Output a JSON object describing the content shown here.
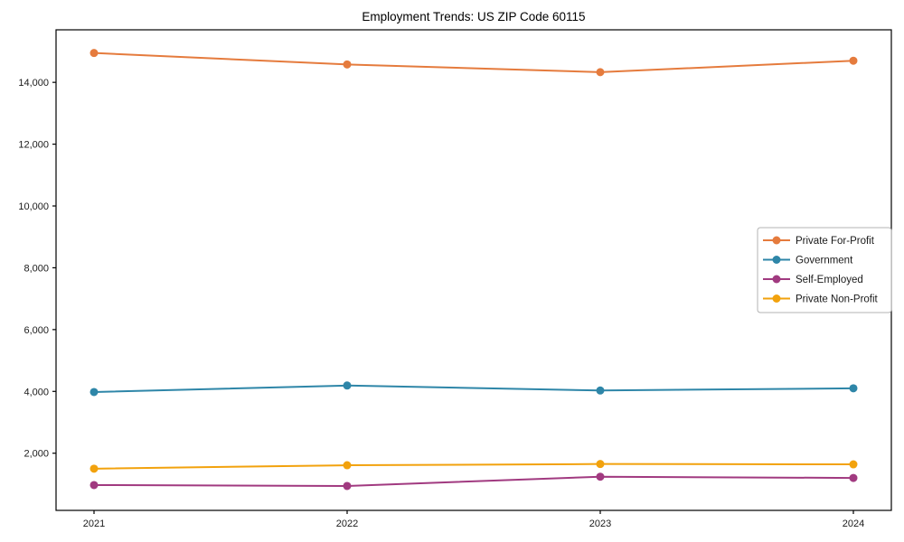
{
  "chart_data": {
    "type": "line",
    "title": "Employment Trends: US ZIP Code 60115",
    "xlabel": "",
    "ylabel": "",
    "categories": [
      2021,
      2022,
      2023,
      2024
    ],
    "series": [
      {
        "name": "Private For-Profit",
        "color": "#e57b3d",
        "values": [
          14950,
          14580,
          14330,
          14700
        ]
      },
      {
        "name": "Government",
        "color": "#2e86a8",
        "values": [
          3980,
          4190,
          4030,
          4100
        ]
      },
      {
        "name": "Self-Employed",
        "color": "#a13a80",
        "values": [
          970,
          940,
          1240,
          1200
        ]
      },
      {
        "name": "Private Non-Profit",
        "color": "#f2a20d",
        "values": [
          1500,
          1610,
          1650,
          1640
        ]
      }
    ],
    "y_ticks": [
      2000,
      4000,
      6000,
      8000,
      10000,
      12000,
      14000
    ],
    "y_tick_labels": [
      "2,000",
      "4,000",
      "6,000",
      "8,000",
      "10,000",
      "12,000",
      "14,000"
    ],
    "x_tick_labels": [
      "2021",
      "2022",
      "2023",
      "2024"
    ],
    "ylim": [
      150,
      15700
    ],
    "xlim": [
      2020.85,
      2024.15
    ],
    "grid": false,
    "legend_position": "right-middle",
    "axis_color": "#000000",
    "tick_label_color": "#1a1a1a",
    "legend_border_color": "#b3b3b3",
    "background_color": "#ffffff"
  }
}
